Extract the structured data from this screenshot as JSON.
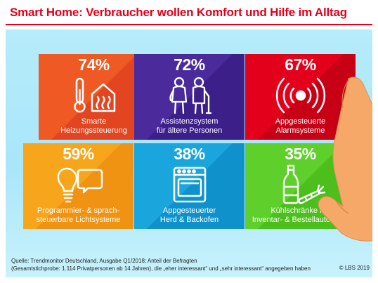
{
  "title": "Smart Home: Verbraucher wollen Komfort und Hilfe im Alltag",
  "tiles": [
    {
      "percent": "74%",
      "label_line1": "Smarte",
      "label_line2": "Heizungssteuerung",
      "icon": "thermometer-house-icon",
      "color": "#ef5a24"
    },
    {
      "percent": "72%",
      "label_line1": "Assistenzsystem",
      "label_line2": "für ältere Personen",
      "icon": "elderly-couple-icon",
      "color": "#4b2a9c"
    },
    {
      "percent": "67%",
      "label_line1": "Appgesteuerte",
      "label_line2": "Alarmsysteme",
      "icon": "alarm-signal-icon",
      "color": "#e3001b"
    },
    {
      "percent": "59%",
      "label_line1": "Programmier- & sprach-",
      "label_line2": "steuerbare Lichtsysteme",
      "icon": "lightbulb-speech-icon",
      "color": "#f7a51b"
    },
    {
      "percent": "38%",
      "label_line1": "Appgesteuerter",
      "label_line2": "Herd & Backofen",
      "icon": "oven-icon",
      "color": "#1aa5dc"
    },
    {
      "percent": "35%",
      "label_line1": "Kühlschränke mit",
      "label_line2": "Inventar- & Bestellautomatik",
      "icon": "bottle-carrot-icon",
      "color": "#5fcf2b"
    }
  ],
  "source_line1": "Quelle: Trendmonitor Deutschland, Ausgabe Q1/2018; Anteil der Befragten",
  "source_line2": "(Gesamtstichprobe: 1.114 Privatpersonen ab 14 Jahren), die „eher interessant“ und „sehr interessant“ angegeben haben",
  "copyright": "© LBS 2019"
}
